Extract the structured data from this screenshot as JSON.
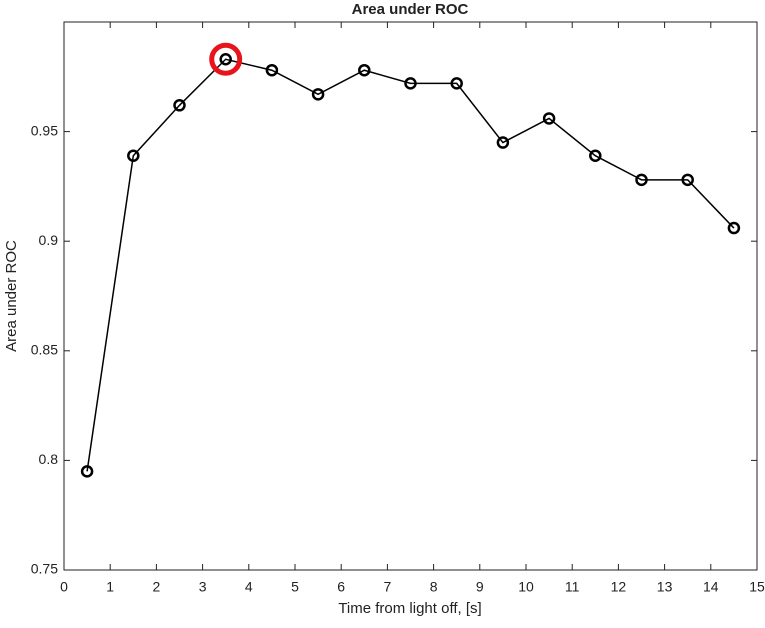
{
  "chart_data": {
    "type": "line",
    "title": "Area under ROC",
    "x_label": "Time from light off, [s]",
    "y_label": "Area under ROC",
    "x": [
      0.5,
      1.5,
      2.5,
      3.5,
      4.5,
      5.5,
      6.5,
      7.5,
      8.5,
      9.5,
      10.5,
      11.5,
      12.5,
      13.5,
      14.5
    ],
    "series": [
      {
        "color": "#000000",
        "values": [
          0.795,
          0.939,
          0.962,
          0.983,
          0.978,
          0.967,
          0.978,
          0.972,
          0.972,
          0.945,
          0.956,
          0.939,
          0.928,
          0.928,
          0.906
        ]
      }
    ],
    "highlight_index": 3,
    "highlight_color": "#e8141c",
    "xlim": [
      0,
      15
    ],
    "xticks": [
      0,
      1,
      2,
      3,
      4,
      5,
      6,
      7,
      8,
      9,
      10,
      11,
      12,
      13,
      14,
      15
    ],
    "ylim": [
      0.75,
      1.0
    ],
    "yticks": [
      0.75,
      0.8,
      0.85,
      0.9,
      0.95
    ],
    "grid": false
  }
}
